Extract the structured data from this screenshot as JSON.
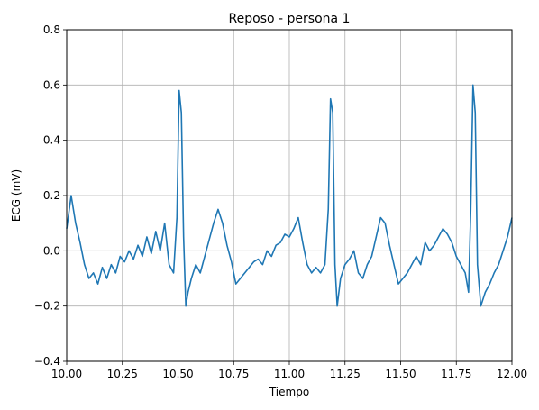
{
  "chart_data": {
    "type": "line",
    "title": "Reposo - persona 1",
    "xlabel": "Tiempo",
    "ylabel": "ECG (mV)",
    "xlim": [
      10.0,
      12.0
    ],
    "ylim": [
      -0.4,
      0.8
    ],
    "x_ticks": [
      10.0,
      10.25,
      10.5,
      10.75,
      11.0,
      11.25,
      11.5,
      11.75,
      12.0
    ],
    "x_tick_labels": [
      "10.00",
      "10.25",
      "10.50",
      "10.75",
      "11.00",
      "11.25",
      "11.50",
      "11.75",
      "12.00"
    ],
    "y_ticks": [
      -0.4,
      -0.2,
      0.0,
      0.2,
      0.4,
      0.6,
      0.8
    ],
    "y_tick_labels": [
      "−0.4",
      "−0.2",
      "0.0",
      "0.2",
      "0.4",
      "0.6",
      "0.8"
    ],
    "grid": true,
    "series": [
      {
        "name": "ECG",
        "color": "#1f77b4",
        "x": [
          10.0,
          10.02,
          10.04,
          10.06,
          10.08,
          10.1,
          10.12,
          10.14,
          10.16,
          10.18,
          10.2,
          10.22,
          10.24,
          10.26,
          10.28,
          10.3,
          10.32,
          10.34,
          10.36,
          10.38,
          10.4,
          10.42,
          10.44,
          10.46,
          10.48,
          10.495,
          10.505,
          10.515,
          10.525,
          10.535,
          10.545,
          10.56,
          10.58,
          10.6,
          10.62,
          10.64,
          10.66,
          10.68,
          10.7,
          10.72,
          10.74,
          10.76,
          10.78,
          10.8,
          10.82,
          10.84,
          10.86,
          10.88,
          10.9,
          10.92,
          10.94,
          10.96,
          10.98,
          11.0,
          11.02,
          11.04,
          11.06,
          11.08,
          11.1,
          11.12,
          11.14,
          11.16,
          11.175,
          11.185,
          11.195,
          11.205,
          11.215,
          11.23,
          11.25,
          11.27,
          11.29,
          11.31,
          11.33,
          11.35,
          11.37,
          11.39,
          11.41,
          11.43,
          11.45,
          11.47,
          11.49,
          11.51,
          11.53,
          11.55,
          11.57,
          11.59,
          11.61,
          11.63,
          11.65,
          11.67,
          11.69,
          11.71,
          11.73,
          11.75,
          11.77,
          11.79,
          11.805,
          11.815,
          11.825,
          11.835,
          11.845,
          11.86,
          11.88,
          11.9,
          11.92,
          11.94,
          11.96,
          11.98,
          12.0
        ],
        "y": [
          0.08,
          0.2,
          0.1,
          0.03,
          -0.05,
          -0.1,
          -0.08,
          -0.12,
          -0.06,
          -0.1,
          -0.05,
          -0.08,
          -0.02,
          -0.04,
          0.0,
          -0.03,
          0.02,
          -0.02,
          0.05,
          -0.01,
          0.07,
          0.0,
          0.1,
          -0.05,
          -0.08,
          0.12,
          0.58,
          0.5,
          0.05,
          -0.2,
          -0.15,
          -0.1,
          -0.05,
          -0.08,
          -0.02,
          0.04,
          0.1,
          0.15,
          0.1,
          0.02,
          -0.04,
          -0.12,
          -0.1,
          -0.08,
          -0.06,
          -0.04,
          -0.03,
          -0.05,
          0.0,
          -0.02,
          0.02,
          0.03,
          0.06,
          0.05,
          0.08,
          0.12,
          0.03,
          -0.05,
          -0.08,
          -0.06,
          -0.08,
          -0.05,
          0.15,
          0.55,
          0.5,
          -0.05,
          -0.2,
          -0.1,
          -0.05,
          -0.03,
          0.0,
          -0.08,
          -0.1,
          -0.05,
          -0.02,
          0.05,
          0.12,
          0.1,
          0.02,
          -0.05,
          -0.12,
          -0.1,
          -0.08,
          -0.05,
          -0.02,
          -0.05,
          0.03,
          0.0,
          0.02,
          0.05,
          0.08,
          0.06,
          0.03,
          -0.02,
          -0.05,
          -0.08,
          -0.15,
          0.15,
          0.6,
          0.5,
          -0.05,
          -0.2,
          -0.15,
          -0.12,
          -0.08,
          -0.05,
          0.0,
          0.05,
          0.12
        ]
      }
    ]
  }
}
